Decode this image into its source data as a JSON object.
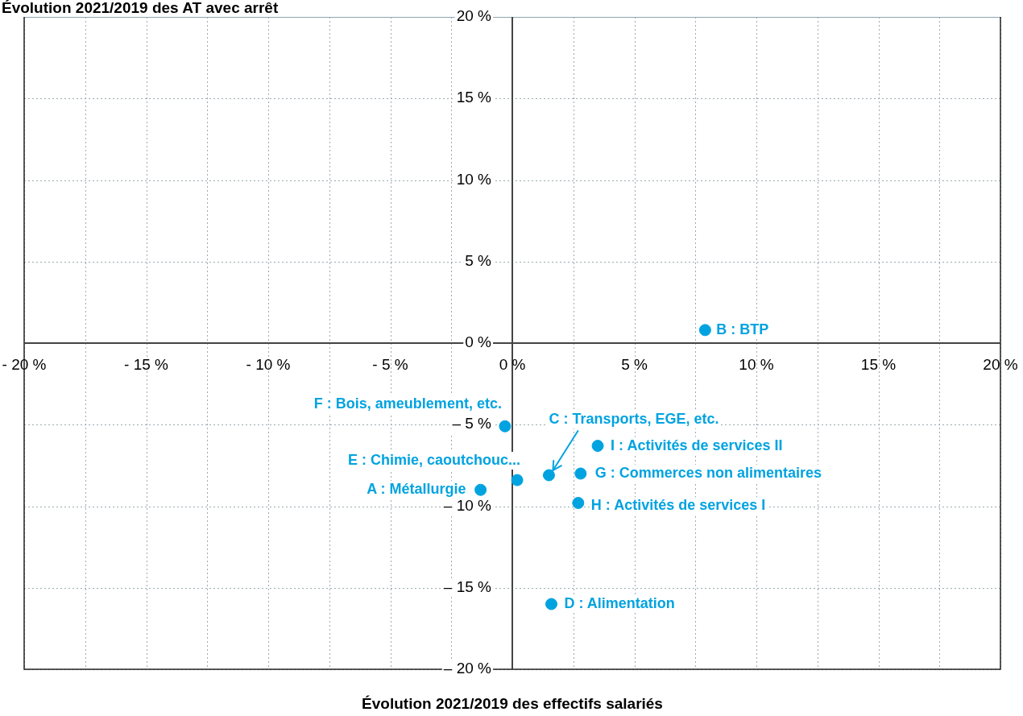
{
  "chart_data": {
    "type": "scatter",
    "ylabel": "Évolution 2021/2019 des AT avec arrêt",
    "xlabel": "Évolution 2021/2019 des effectifs salariés",
    "series": [
      {
        "color": "#00a3e0",
        "x": [
          -1.3,
          7.9,
          1.5,
          1.6,
          0.2,
          -0.3,
          2.8,
          2.7,
          3.5
        ],
        "values": [
          -9.0,
          0.8,
          -8.1,
          -16.0,
          -8.4,
          -5.1,
          -8.0,
          -9.8,
          -6.3
        ]
      }
    ],
    "annotations": [
      {
        "text": "A : Métallurgie",
        "x": -1.3,
        "y": -9.0
      },
      {
        "text": "B : BTP",
        "x": 7.9,
        "y": 0.8
      },
      {
        "text": "C : Transports, EGE, etc.",
        "x": 1.5,
        "y": -8.1
      },
      {
        "text": "D : Alimentation",
        "x": 1.6,
        "y": -16.0
      },
      {
        "text": "E : Chimie, caoutchouc...",
        "x": 0.2,
        "y": -8.4
      },
      {
        "text": "F : Bois, ameublement, etc.",
        "x": -0.3,
        "y": -5.1
      },
      {
        "text": "G : Commerces non alimentaires",
        "x": 2.8,
        "y": -8.0
      },
      {
        "text": "H : Activités de services I",
        "x": 2.7,
        "y": -9.8
      },
      {
        "text": "I : Activités de services II",
        "x": 3.5,
        "y": -6.3
      }
    ],
    "xlim": [
      -20,
      20
    ],
    "ylim": [
      -20,
      20
    ],
    "xticks": [
      {
        "value": -20,
        "label": "- 20 %"
      },
      {
        "value": -17.5,
        "label": null
      },
      {
        "value": -15,
        "label": "- 15 %"
      },
      {
        "value": -12.5,
        "label": null
      },
      {
        "value": -10,
        "label": "- 10 %"
      },
      {
        "value": -7.5,
        "label": null
      },
      {
        "value": -5,
        "label": "- 5 %"
      },
      {
        "value": -2.5,
        "label": null
      },
      {
        "value": 0,
        "label": "0 %"
      },
      {
        "value": 2.5,
        "label": null
      },
      {
        "value": 5,
        "label": "5 %"
      },
      {
        "value": 7.5,
        "label": null
      },
      {
        "value": 10,
        "label": "10 %"
      },
      {
        "value": 12.5,
        "label": null
      },
      {
        "value": 15,
        "label": "15 %"
      },
      {
        "value": 17.5,
        "label": null
      },
      {
        "value": 20,
        "label": "20 %"
      }
    ],
    "yticks": [
      {
        "value": -20,
        "label": "– 20 %"
      },
      {
        "value": -15,
        "label": "– 15 %"
      },
      {
        "value": -10,
        "label": "– 10 %"
      },
      {
        "value": -5,
        "label": "– 5 %"
      },
      {
        "value": 0,
        "label": "0 %"
      },
      {
        "value": 5,
        "label": "5 %"
      },
      {
        "value": 10,
        "label": "10 %"
      },
      {
        "value": 15,
        "label": "15 %"
      },
      {
        "value": 20,
        "label": "20 %"
      }
    ],
    "grid": true,
    "marker": "circle",
    "legend": false
  }
}
